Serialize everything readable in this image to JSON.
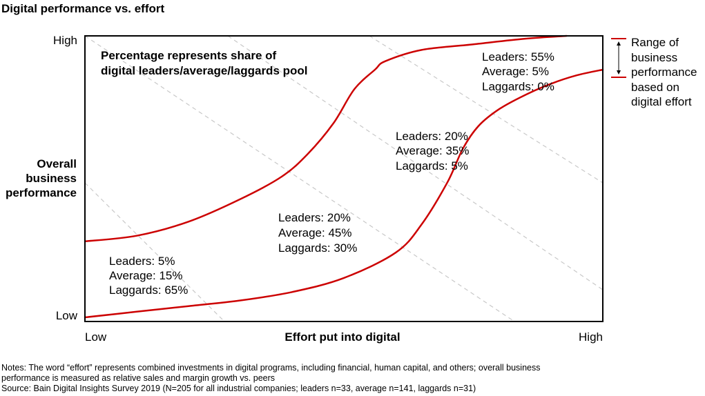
{
  "chart_data": {
    "type": "area",
    "title": "Digital performance vs. effort",
    "xlabel": "Effort put into digital",
    "ylabel_lines": [
      "Overall",
      "business",
      "performance"
    ],
    "x_ticks": {
      "low": "Low",
      "high": "High"
    },
    "y_ticks": {
      "low": "Low",
      "high": "High"
    },
    "xlim": [
      0,
      100
    ],
    "ylim": [
      0,
      100
    ],
    "annotation_lines": [
      "Percentage represents share of",
      "digital leaders/average/laggards pool"
    ],
    "series": [
      {
        "name": "Upper boundary",
        "x": [
          0,
          10,
          20,
          30,
          38,
          43,
          48,
          52,
          56,
          58,
          65,
          75,
          85,
          93
        ],
        "y": [
          27,
          29,
          34,
          42,
          50,
          58,
          69,
          81,
          88,
          91,
          95,
          97,
          99,
          100
        ]
      },
      {
        "name": "Lower boundary",
        "x": [
          0,
          10,
          20,
          30,
          40,
          50,
          60,
          65,
          70,
          73,
          76,
          80,
          85,
          90,
          95,
          100
        ],
        "y": [
          0,
          2,
          4,
          6,
          9,
          14,
          23,
          33,
          48,
          60,
          68,
          74,
          79,
          83,
          86,
          88
        ]
      }
    ],
    "zones": [
      {
        "lines": [
          "Leaders: 5%",
          "Average: 15%",
          "Laggards: 65%"
        ]
      },
      {
        "lines": [
          "Leaders: 20%",
          "Average: 45%",
          "Laggards: 30%"
        ]
      },
      {
        "lines": [
          "Leaders: 20%",
          "Average: 35%",
          "Laggards: 5%"
        ]
      },
      {
        "lines": [
          "Leaders: 55%",
          "Average: 5%",
          "Laggards: 0%"
        ]
      }
    ],
    "legend": {
      "position": "right",
      "lines": [
        "Range of",
        "business",
        "performance",
        "based on",
        "digital effort"
      ]
    },
    "line_color": "#cc0000",
    "guide_color": "#c8c8c8"
  },
  "notes": {
    "line1": "Notes: The word “effort” represents combined investments in digital programs, including financial, human capital, and others; overall business",
    "line2": "performance is measured as relative sales and margin growth vs. peers",
    "source": "Source: Bain Digital Insights Survey 2019 (N=205 for all industrial companies; leaders n=33, average n=141, laggards n=31)"
  }
}
